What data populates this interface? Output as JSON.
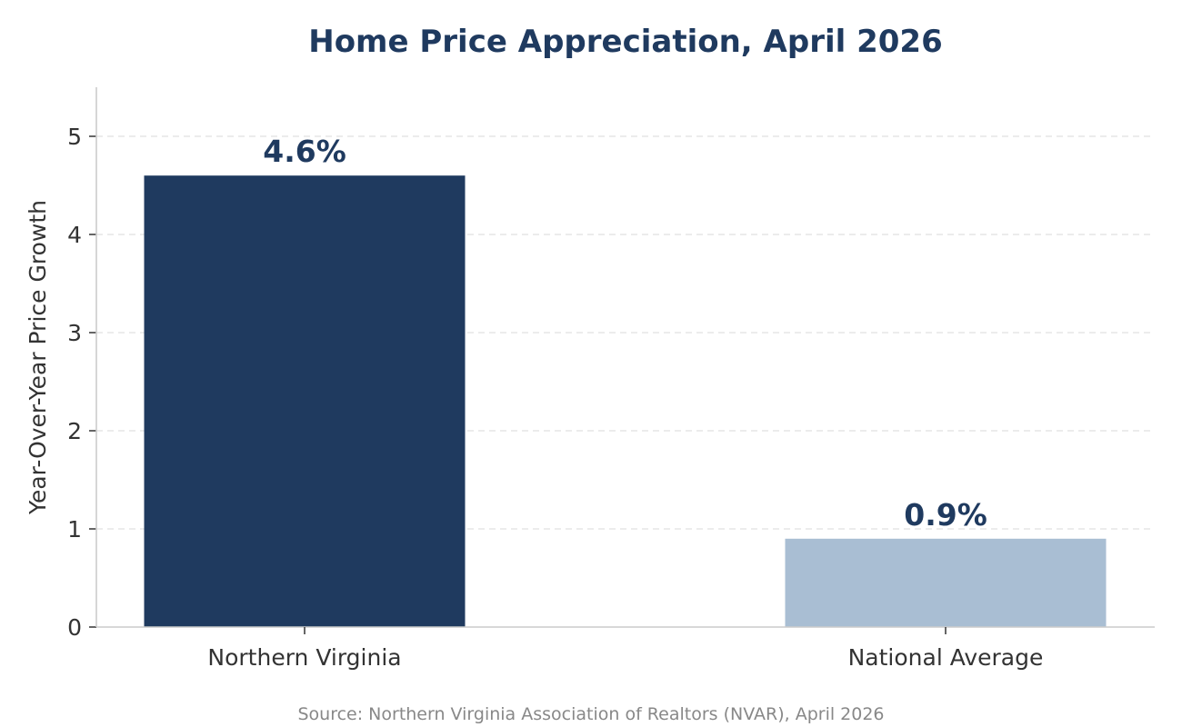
{
  "chart_data": {
    "type": "bar",
    "title": "Home Price Appreciation, April 2026",
    "ylabel": "Year-Over-Year Price Growth",
    "xlabel": "",
    "categories": [
      "Northern Virginia",
      "National Average"
    ],
    "values": [
      4.6,
      0.9
    ],
    "value_labels": [
      "4.6%",
      "0.9%"
    ],
    "bar_colors": [
      "#1f3a5f",
      "#a9bed3"
    ],
    "ylim": [
      0,
      5.5
    ],
    "yticks": [
      0,
      1,
      2,
      3,
      4,
      5
    ],
    "grid": true,
    "legend": "none",
    "source": "Source: Northern Virginia Association of Realtors (NVAR), April 2026"
  },
  "colors": {
    "title": "#1f3a5f",
    "value_label": "#1f3a5f",
    "axis": "#cccccc",
    "grid": "#e6e6e6",
    "tick_text": "#333333",
    "source_text": "#888888"
  }
}
